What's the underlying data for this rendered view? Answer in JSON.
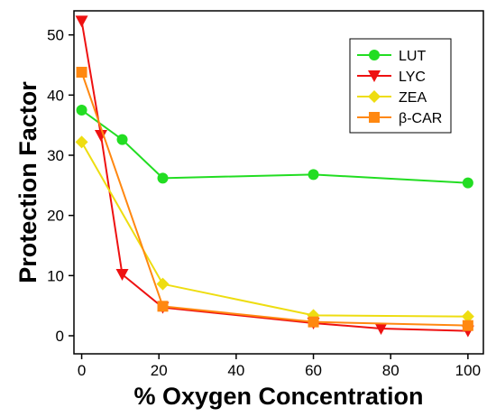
{
  "chart_data": {
    "type": "line",
    "xlabel": "% Oxygen Concentration",
    "ylabel": "Protection Factor",
    "xlim": [
      -2,
      104
    ],
    "ylim": [
      -3,
      54
    ],
    "x_ticks": [
      0,
      20,
      40,
      60,
      80,
      100
    ],
    "y_ticks": [
      0,
      10,
      20,
      30,
      40,
      50
    ],
    "grid": false,
    "legend_position": "top-right",
    "series": [
      {
        "name": "LUT",
        "color": "#22dd22",
        "marker": "circle",
        "x": [
          0,
          10.5,
          21,
          60,
          100
        ],
        "y": [
          37.5,
          32.6,
          26.2,
          26.8,
          25.4
        ]
      },
      {
        "name": "LYC",
        "color": "#ee1111",
        "marker": "triangle-down",
        "x": [
          0,
          5,
          10.5,
          21,
          60,
          77.5,
          100
        ],
        "y": [
          52.3,
          33.3,
          10.2,
          4.7,
          2.1,
          1.2,
          0.8
        ]
      },
      {
        "name": "ZEA",
        "color": "#eedd11",
        "marker": "diamond",
        "x": [
          0,
          21,
          60,
          100
        ],
        "y": [
          32.2,
          8.6,
          3.4,
          3.2
        ]
      },
      {
        "name": "β-CAR",
        "color": "#ff8811",
        "marker": "square",
        "x": [
          0,
          21,
          60,
          100
        ],
        "y": [
          43.8,
          4.9,
          2.3,
          1.7
        ]
      }
    ]
  }
}
